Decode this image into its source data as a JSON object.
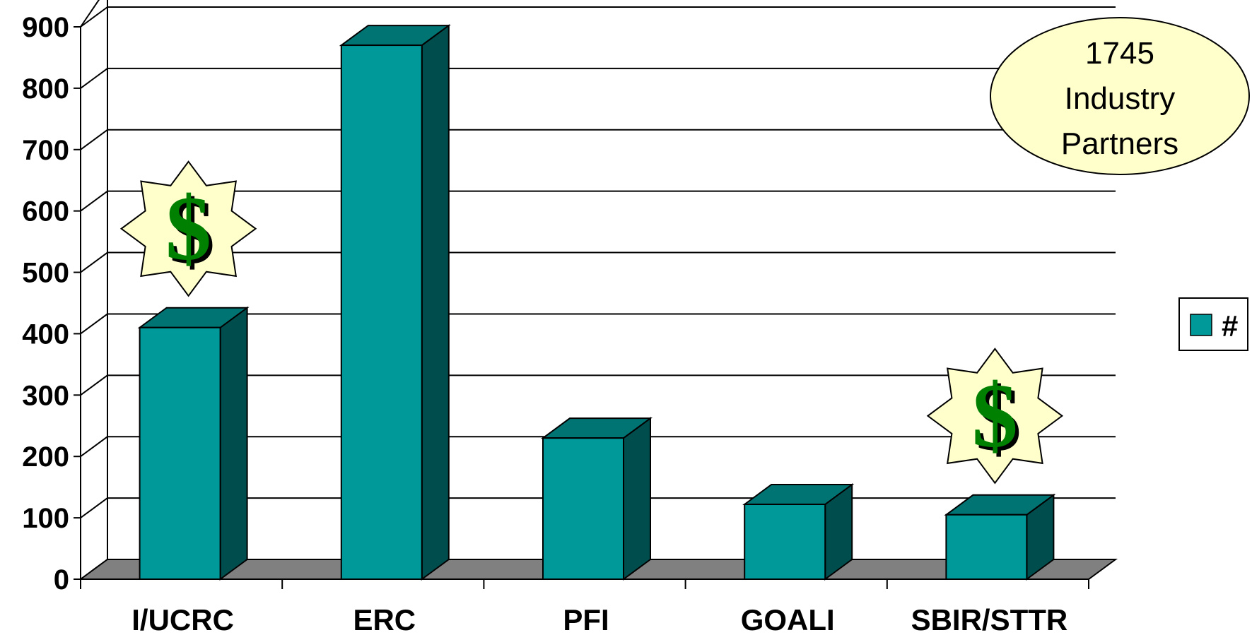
{
  "chart_data": {
    "type": "bar",
    "categories": [
      "I/UCRC",
      "ERC",
      "PFI",
      "GOALI",
      "SBIR/STTR"
    ],
    "series": [
      {
        "name": "#",
        "values": [
          410,
          870,
          230,
          122,
          105
        ]
      }
    ],
    "ylim": [
      0,
      900
    ],
    "yticks": [
      0,
      100,
      200,
      300,
      400,
      500,
      600,
      700,
      800,
      900
    ],
    "grid": true,
    "legend": "right",
    "bar_color": "#009999",
    "bar_side_color": "#004d4d",
    "bar_top_color": "#007373",
    "floor_color": "#808080",
    "callout": {
      "lines": [
        "1745",
        "Industry",
        "Partners"
      ],
      "fill": "#ffffcc"
    },
    "badges": [
      {
        "category": "I/UCRC",
        "symbol": "$",
        "icon": "dollar-starburst-icon"
      },
      {
        "category": "SBIR/STTR",
        "symbol": "$",
        "icon": "dollar-starburst-icon"
      }
    ],
    "symbol_color": "#008000"
  }
}
